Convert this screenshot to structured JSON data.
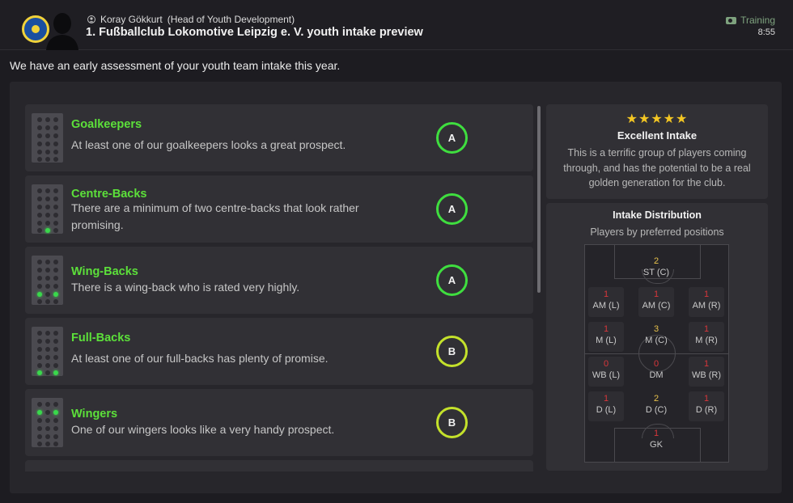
{
  "header": {
    "sender_name": "Koray Gökkurt",
    "sender_role": "(Head of Youth Development)",
    "subject": "1. Fußballclub Lokomotive Leipzig e. V. youth intake preview",
    "tag": "Training",
    "time": "8:55"
  },
  "intro": "We have an early assessment of your youth team intake this year.",
  "colors": {
    "title_green": "#5ce03a",
    "grade_a": "#3fde3f",
    "grade_b": "#c4e12b",
    "star": "#f3c623",
    "count_red": "#d8363b",
    "count_gold": "#e7c14b"
  },
  "groups": [
    {
      "title": "Goalkeepers",
      "desc": "At least one of our goalkeepers looks a great prospect.",
      "grade": "A",
      "dots": [
        18
      ]
    },
    {
      "title": "Centre-Backs",
      "desc": "There are a minimum of two centre-backs that look rather promising.",
      "grade": "A",
      "dots": [
        16
      ]
    },
    {
      "title": "Wing-Backs",
      "desc": "There is a wing-back who is rated very highly.",
      "grade": "A",
      "dots": [
        12,
        14
      ]
    },
    {
      "title": "Full-Backs",
      "desc": "At least one of our full-backs has plenty of promise.",
      "grade": "B",
      "dots": [
        15,
        17
      ]
    },
    {
      "title": "Wingers",
      "desc": "One of our wingers looks like a very handy prospect.",
      "grade": "B",
      "dots": [
        3,
        5
      ]
    }
  ],
  "summary": {
    "stars": "★★★★★",
    "rating_stars": 5,
    "title": "Excellent Intake",
    "desc": "This is a terrific group of players coming through, and has the potential to be a real golden generation for the club."
  },
  "distribution": {
    "title": "Intake Distribution",
    "subtitle": "Players by preferred positions",
    "positions": [
      {
        "label": "ST (C)",
        "count": "2",
        "tone": "gold"
      },
      {
        "label": "AM (L)",
        "count": "1",
        "tone": "red"
      },
      {
        "label": "AM (C)",
        "count": "1",
        "tone": "red"
      },
      {
        "label": "AM (R)",
        "count": "1",
        "tone": "red"
      },
      {
        "label": "M (L)",
        "count": "1",
        "tone": "red"
      },
      {
        "label": "M (C)",
        "count": "3",
        "tone": "gold"
      },
      {
        "label": "M (R)",
        "count": "1",
        "tone": "red"
      },
      {
        "label": "WB (L)",
        "count": "0",
        "tone": "red"
      },
      {
        "label": "DM",
        "count": "0",
        "tone": "red"
      },
      {
        "label": "WB (R)",
        "count": "1",
        "tone": "red"
      },
      {
        "label": "D (L)",
        "count": "1",
        "tone": "red"
      },
      {
        "label": "D (C)",
        "count": "2",
        "tone": "gold"
      },
      {
        "label": "D (R)",
        "count": "1",
        "tone": "red"
      },
      {
        "label": "GK",
        "count": "1",
        "tone": "red"
      }
    ]
  }
}
